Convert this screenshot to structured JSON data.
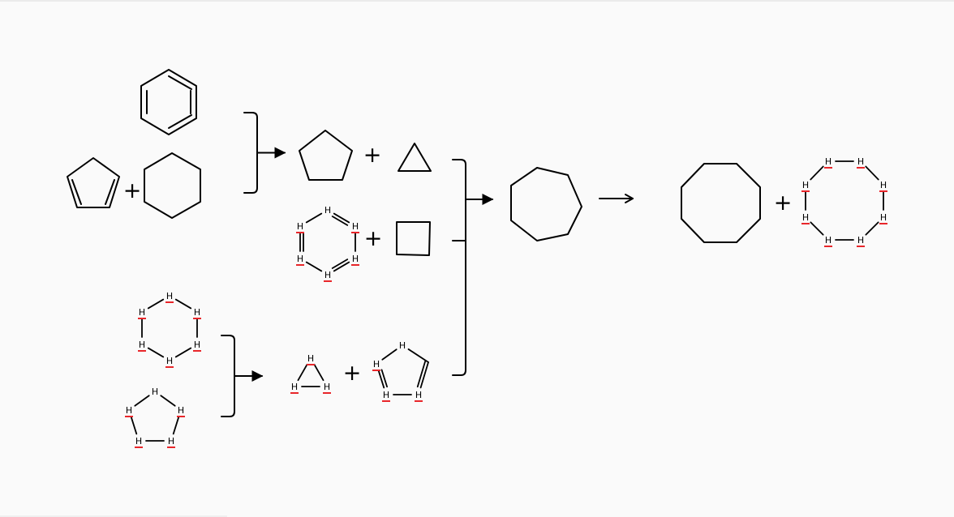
{
  "atom_label": "H",
  "plus_sign": "+",
  "colors": {
    "ink": "#000000",
    "charge_mark": "#e8262a",
    "background": "#fafafa"
  },
  "molecules": [
    "benzene",
    "cyclopentadiene",
    "cyclohexane",
    "cyclopentane",
    "cyclopropane",
    "cyclohexatriene-H",
    "cyclobutane",
    "cyclohexane-H",
    "cyclopentane-H",
    "cyclopropane-H",
    "cyclopentadiene-H",
    "cycloheptane",
    "cyclooctane",
    "cyclooctane-H"
  ]
}
